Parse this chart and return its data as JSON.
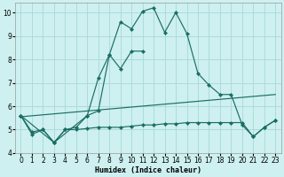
{
  "xlabel": "Humidex (Indice chaleur)",
  "xlim": [
    -0.5,
    23.5
  ],
  "ylim": [
    4,
    10.4
  ],
  "yticks": [
    4,
    5,
    6,
    7,
    8,
    9,
    10
  ],
  "xticks": [
    0,
    1,
    2,
    3,
    4,
    5,
    6,
    7,
    8,
    9,
    10,
    11,
    12,
    13,
    14,
    15,
    16,
    17,
    18,
    19,
    20,
    21,
    22,
    23
  ],
  "background_color": "#cef0f0",
  "grid_color": "#aad8d8",
  "line_color": "#1a6e64",
  "line1": {
    "x": [
      0,
      1,
      2,
      3,
      4,
      5,
      6,
      7,
      8,
      9,
      10,
      11,
      12,
      13,
      14,
      15,
      16,
      17,
      18,
      19,
      20,
      21,
      22,
      23
    ],
    "y": [
      5.6,
      4.8,
      5.0,
      4.45,
      5.0,
      5.1,
      5.6,
      5.8,
      8.2,
      9.6,
      9.3,
      10.05,
      10.2,
      9.15,
      10.0,
      9.1,
      7.4,
      6.9,
      6.5,
      6.5,
      5.2,
      4.7,
      5.1,
      5.4
    ]
  },
  "line2": {
    "x": [
      0,
      3,
      6,
      7,
      8,
      9,
      10,
      11
    ],
    "y": [
      5.6,
      4.45,
      5.6,
      7.2,
      8.2,
      7.6,
      8.35,
      8.35
    ]
  },
  "line3": {
    "x": [
      0,
      23
    ],
    "y": [
      5.55,
      6.5
    ]
  },
  "line4": {
    "x": [
      0,
      1,
      2,
      3,
      4,
      5,
      6,
      7,
      8,
      9,
      10,
      11,
      12,
      13,
      14,
      15,
      16,
      17,
      18,
      19,
      20,
      21,
      22,
      23
    ],
    "y": [
      5.6,
      4.9,
      5.0,
      4.45,
      5.0,
      5.0,
      5.05,
      5.1,
      5.1,
      5.1,
      5.15,
      5.2,
      5.2,
      5.25,
      5.25,
      5.3,
      5.3,
      5.3,
      5.3,
      5.3,
      5.3,
      4.7,
      5.1,
      5.4
    ]
  }
}
